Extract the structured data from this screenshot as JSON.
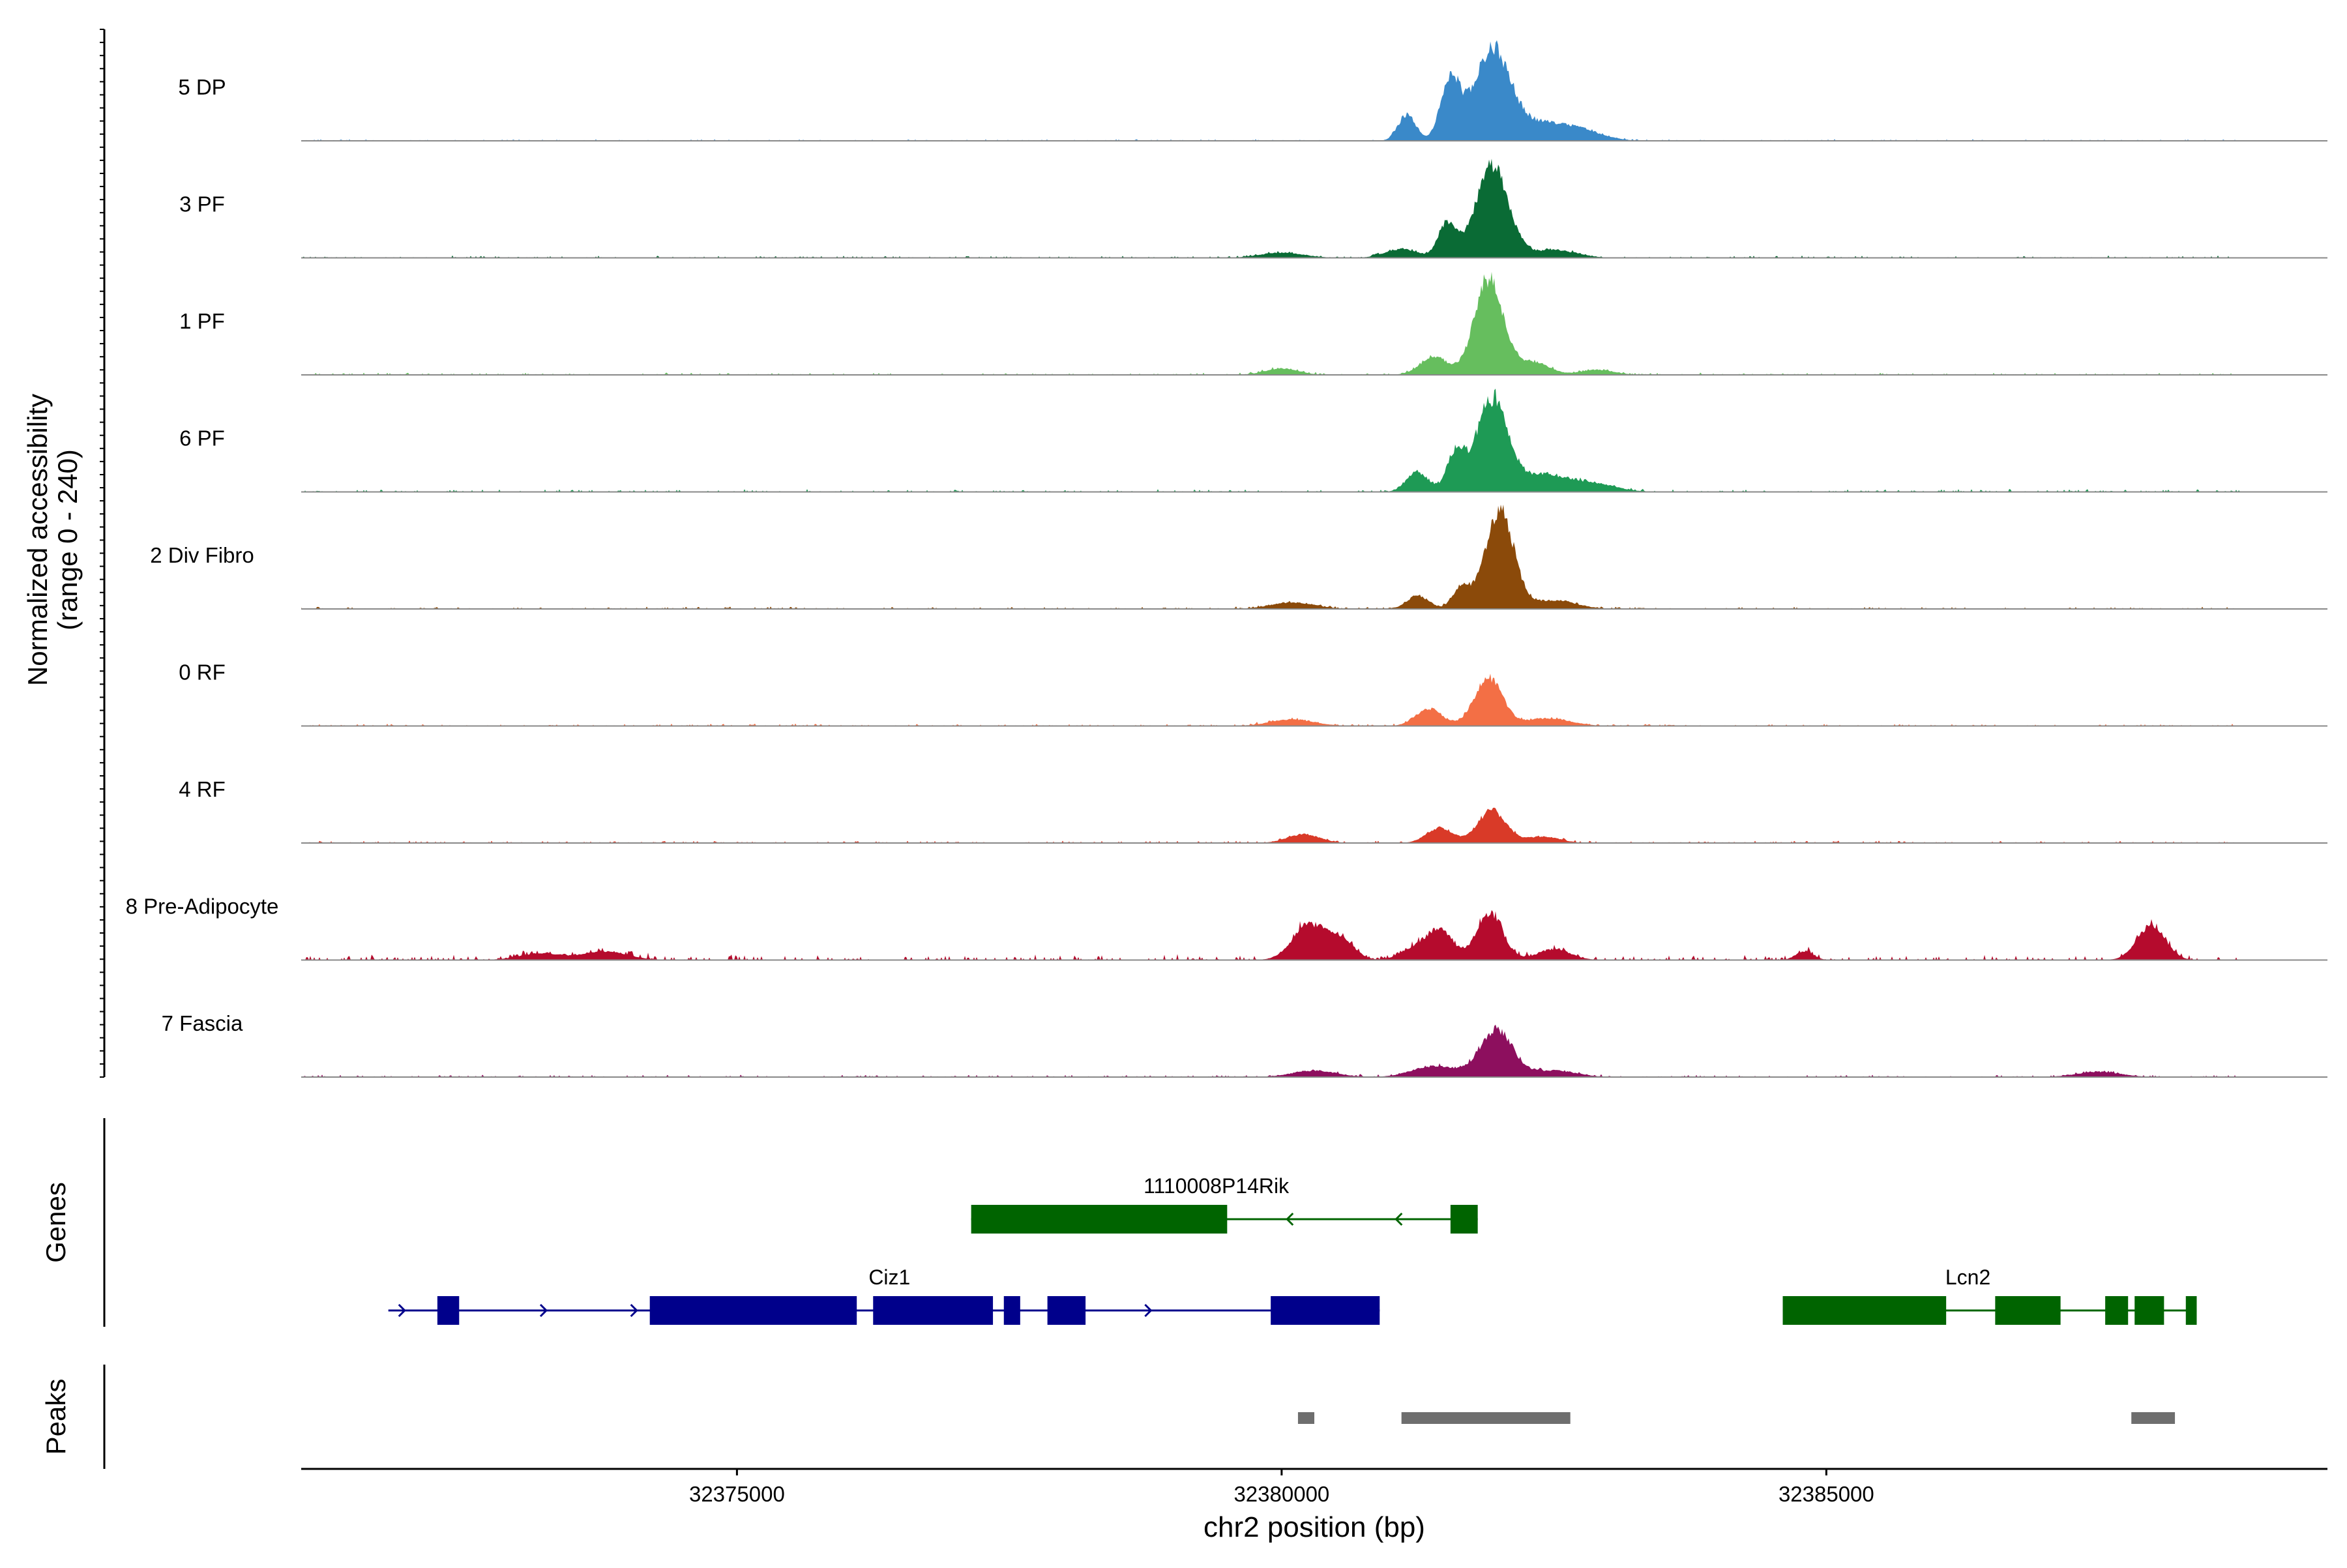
{
  "chart_data": {
    "type": "area",
    "title": "",
    "genome": {
      "chromosome": "chr2",
      "xlim": [
        32371000,
        32389600
      ],
      "xlabel": "chr2 position (bp)",
      "xticks": [
        32375000,
        32380000,
        32385000
      ],
      "xtick_labels": [
        "32375000",
        "32380000",
        "32385000"
      ]
    },
    "coverage": {
      "ylabel_line1": "Normalized accessibility",
      "ylabel_line2": "(range 0 - 240)",
      "ylim": [
        0,
        240
      ],
      "track_start": 32371000,
      "track_end": 32388800,
      "series": [
        {
          "name": "5 DP",
          "color": "#3A89C9",
          "noise": 3,
          "peaks": [
            [
              32381930,
              160,
              200
            ],
            [
              32381550,
              90,
              140
            ],
            [
              32381150,
              80,
              60
            ],
            [
              32382350,
              300,
              40
            ],
            [
              32382750,
              200,
              15
            ]
          ]
        },
        {
          "name": "3 PF",
          "color": "#0A6B35",
          "noise": 4,
          "peaks": [
            [
              32381930,
              150,
              210
            ],
            [
              32381520,
              80,
              80
            ],
            [
              32381100,
              150,
              20
            ],
            [
              32382500,
              200,
              18
            ],
            [
              32380000,
              200,
              12
            ]
          ]
        },
        {
          "name": "1 PF",
          "color": "#66BE5E",
          "noise": 4,
          "peaks": [
            [
              32381900,
              130,
              220
            ],
            [
              32381400,
              130,
              40
            ],
            [
              32382300,
              150,
              30
            ],
            [
              32380000,
              150,
              15
            ],
            [
              32382900,
              150,
              12
            ]
          ]
        },
        {
          "name": "6 PF",
          "color": "#1E9A55",
          "noise": 5,
          "peaks": [
            [
              32381930,
              140,
              210
            ],
            [
              32381600,
              80,
              90
            ],
            [
              32381250,
              100,
              45
            ],
            [
              32382400,
              250,
              40
            ],
            [
              32382900,
              200,
              15
            ]
          ]
        },
        {
          "name": "2 Div Fibro",
          "color": "#8B4A0A",
          "noise": 4,
          "peaks": [
            [
              32382000,
              130,
              230
            ],
            [
              32381650,
              80,
              50
            ],
            [
              32381250,
              100,
              30
            ],
            [
              32382500,
              200,
              20
            ],
            [
              32380100,
              200,
              15
            ]
          ]
        },
        {
          "name": "0 RF",
          "color": "#F36F45",
          "noise": 4,
          "peaks": [
            [
              32381900,
              130,
              110
            ],
            [
              32381350,
              120,
              40
            ],
            [
              32382450,
              200,
              18
            ],
            [
              32380100,
              200,
              15
            ]
          ]
        },
        {
          "name": "4 RF",
          "color": "#D93A28",
          "noise": 4,
          "peaks": [
            [
              32381930,
              130,
              75
            ],
            [
              32381450,
              120,
              35
            ],
            [
              32382400,
              150,
              15
            ],
            [
              32380200,
              150,
              20
            ]
          ]
        },
        {
          "name": "8 Pre-Adipocyte",
          "color": "#B50B2D",
          "noise": 10,
          "peaks": [
            [
              32381910,
              120,
              110
            ],
            [
              32381450,
              120,
              70
            ],
            [
              32380250,
              150,
              80
            ],
            [
              32380550,
              120,
              45
            ],
            [
              32381200,
              120,
              25
            ],
            [
              32382500,
              150,
              25
            ],
            [
              32387980,
              130,
              80
            ],
            [
              32373800,
              200,
              20
            ],
            [
              32373200,
              200,
              15
            ],
            [
              32384800,
              80,
              20
            ]
          ]
        },
        {
          "name": "7 Fascia",
          "color": "#8D0F5E",
          "noise": 4,
          "peaks": [
            [
              32381970,
              150,
              110
            ],
            [
              32381400,
              200,
              25
            ],
            [
              32380300,
              200,
              15
            ],
            [
              32382500,
              200,
              15
            ],
            [
              32387500,
              200,
              12
            ]
          ]
        }
      ]
    },
    "genes": {
      "label": "Genes",
      "items": [
        {
          "name": "1110008P14Rik",
          "strand": "-",
          "color": "#006400",
          "row": 0,
          "start": 32377150,
          "end": 32381800,
          "exons": [
            [
              32377150,
              32379500
            ],
            [
              32381550,
              32381800
            ]
          ],
          "arrows": [
            32380050,
            32381050
          ]
        },
        {
          "name": "Ciz1",
          "strand": "+",
          "color": "#00008B",
          "row": 1,
          "start": 32371800,
          "end": 32380900,
          "exons": [
            [
              32372250,
              32372450
            ],
            [
              32374200,
              32376100
            ],
            [
              32376250,
              32377350
            ],
            [
              32377450,
              32377600
            ],
            [
              32377850,
              32378200
            ],
            [
              32379900,
              32380900
            ]
          ],
          "arrows": [
            32371950,
            32373250,
            32374080,
            32378800
          ]
        },
        {
          "name": "Lcn2",
          "strand": "+",
          "color": "#006400",
          "row": 1,
          "start": 32384600,
          "end": 32388400,
          "exons": [
            [
              32384600,
              32386100
            ],
            [
              32386550,
              32387150
            ],
            [
              32387560,
              32387770
            ],
            [
              32387830,
              32388100
            ],
            [
              32388300,
              32388400
            ]
          ],
          "arrows": []
        }
      ]
    },
    "peaks": {
      "label": "Peaks",
      "color": "#6E6E6E",
      "regions": [
        [
          32380150,
          32380300
        ],
        [
          32381100,
          32382650
        ],
        [
          32387800,
          32388200
        ]
      ]
    }
  }
}
